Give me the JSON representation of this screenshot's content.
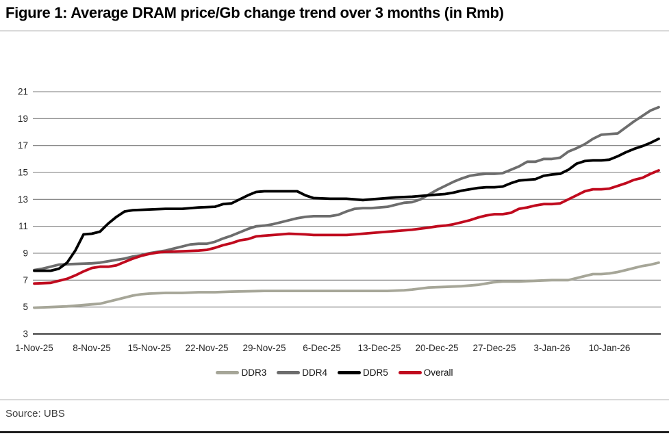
{
  "figure": {
    "title": "Figure 1: Average DRAM price/Gb change trend over 3 months (in Rmb)",
    "source_label": "Source: UBS"
  },
  "chart_data": {
    "type": "line",
    "title": "Figure 1: Average DRAM price/Gb change trend over 3 months (in Rmb)",
    "x_unit": "days since 1-Nov-25",
    "x_tick_labels": [
      "1-Nov-25",
      "8-Nov-25",
      "15-Nov-25",
      "22-Nov-25",
      "29-Nov-25",
      "6-Dec-25",
      "13-Dec-25",
      "20-Dec-25",
      "27-Dec-25",
      "3-Jan-26",
      "10-Jan-26"
    ],
    "x_tick_days": [
      0,
      7,
      14,
      21,
      28,
      35,
      42,
      49,
      56,
      63,
      70
    ],
    "x_range_days": [
      0,
      76
    ],
    "ylim": [
      3,
      21
    ],
    "y_ticks": [
      3,
      5,
      7,
      9,
      11,
      13,
      15,
      17,
      19,
      21
    ],
    "grid": "horizontal",
    "legend_position": "bottom",
    "grid_color": "#7a7a7a",
    "baseline_color": "#000000",
    "tick_label_color": "#262626",
    "series": [
      {
        "name": "DDR3",
        "color": "#a6a698",
        "points": [
          [
            0,
            4.95
          ],
          [
            2,
            5.0
          ],
          [
            4,
            5.05
          ],
          [
            6,
            5.15
          ],
          [
            7,
            5.2
          ],
          [
            8,
            5.25
          ],
          [
            9,
            5.4
          ],
          [
            10,
            5.55
          ],
          [
            11,
            5.7
          ],
          [
            12,
            5.85
          ],
          [
            13,
            5.95
          ],
          [
            14,
            6.0
          ],
          [
            16,
            6.05
          ],
          [
            18,
            6.05
          ],
          [
            20,
            6.1
          ],
          [
            22,
            6.1
          ],
          [
            24,
            6.15
          ],
          [
            28,
            6.2
          ],
          [
            32,
            6.2
          ],
          [
            36,
            6.2
          ],
          [
            40,
            6.2
          ],
          [
            43,
            6.2
          ],
          [
            45,
            6.25
          ],
          [
            46,
            6.3
          ],
          [
            48,
            6.45
          ],
          [
            50,
            6.5
          ],
          [
            52,
            6.55
          ],
          [
            54,
            6.65
          ],
          [
            55,
            6.75
          ],
          [
            56,
            6.85
          ],
          [
            57,
            6.9
          ],
          [
            59,
            6.9
          ],
          [
            61,
            6.95
          ],
          [
            63,
            7.0
          ],
          [
            65,
            7.0
          ],
          [
            66,
            7.15
          ],
          [
            67,
            7.3
          ],
          [
            68,
            7.45
          ],
          [
            69,
            7.45
          ],
          [
            70,
            7.5
          ],
          [
            71,
            7.6
          ],
          [
            72,
            7.75
          ],
          [
            73,
            7.9
          ],
          [
            74,
            8.05
          ],
          [
            75,
            8.15
          ],
          [
            76,
            8.3
          ]
        ]
      },
      {
        "name": "DDR4",
        "color": "#6d6d6d",
        "points": [
          [
            0,
            7.75
          ],
          [
            1,
            7.85
          ],
          [
            2,
            8.0
          ],
          [
            3,
            8.15
          ],
          [
            5,
            8.2
          ],
          [
            7,
            8.25
          ],
          [
            8,
            8.3
          ],
          [
            9,
            8.4
          ],
          [
            10,
            8.5
          ],
          [
            11,
            8.6
          ],
          [
            12,
            8.75
          ],
          [
            13,
            8.85
          ],
          [
            14,
            9.0
          ],
          [
            15,
            9.1
          ],
          [
            16,
            9.2
          ],
          [
            17,
            9.35
          ],
          [
            18,
            9.5
          ],
          [
            19,
            9.65
          ],
          [
            20,
            9.7
          ],
          [
            21,
            9.7
          ],
          [
            22,
            9.85
          ],
          [
            23,
            10.1
          ],
          [
            24,
            10.3
          ],
          [
            25,
            10.55
          ],
          [
            26,
            10.8
          ],
          [
            27,
            11.0
          ],
          [
            28,
            11.05
          ],
          [
            29,
            11.15
          ],
          [
            30,
            11.3
          ],
          [
            31,
            11.45
          ],
          [
            32,
            11.6
          ],
          [
            33,
            11.7
          ],
          [
            34,
            11.75
          ],
          [
            36,
            11.75
          ],
          [
            37,
            11.85
          ],
          [
            38,
            12.1
          ],
          [
            39,
            12.3
          ],
          [
            40,
            12.35
          ],
          [
            41,
            12.35
          ],
          [
            42,
            12.4
          ],
          [
            43,
            12.45
          ],
          [
            44,
            12.6
          ],
          [
            45,
            12.75
          ],
          [
            46,
            12.8
          ],
          [
            47,
            13.0
          ],
          [
            48,
            13.35
          ],
          [
            49,
            13.7
          ],
          [
            50,
            14.0
          ],
          [
            51,
            14.3
          ],
          [
            52,
            14.55
          ],
          [
            53,
            14.75
          ],
          [
            54,
            14.85
          ],
          [
            55,
            14.9
          ],
          [
            56,
            14.9
          ],
          [
            57,
            14.95
          ],
          [
            58,
            15.2
          ],
          [
            59,
            15.45
          ],
          [
            60,
            15.8
          ],
          [
            61,
            15.8
          ],
          [
            62,
            16.0
          ],
          [
            63,
            16.0
          ],
          [
            64,
            16.1
          ],
          [
            65,
            16.55
          ],
          [
            66,
            16.8
          ],
          [
            67,
            17.1
          ],
          [
            68,
            17.5
          ],
          [
            69,
            17.8
          ],
          [
            70,
            17.85
          ],
          [
            71,
            17.9
          ],
          [
            72,
            18.35
          ],
          [
            73,
            18.8
          ],
          [
            74,
            19.2
          ],
          [
            75,
            19.6
          ],
          [
            76,
            19.85
          ]
        ]
      },
      {
        "name": "DDR5",
        "color": "#000000",
        "points": [
          [
            0,
            7.7
          ],
          [
            2,
            7.7
          ],
          [
            3,
            7.85
          ],
          [
            4,
            8.3
          ],
          [
            5,
            9.2
          ],
          [
            6,
            10.4
          ],
          [
            7,
            10.45
          ],
          [
            8,
            10.6
          ],
          [
            9,
            11.2
          ],
          [
            10,
            11.7
          ],
          [
            11,
            12.1
          ],
          [
            12,
            12.2
          ],
          [
            14,
            12.25
          ],
          [
            16,
            12.3
          ],
          [
            18,
            12.3
          ],
          [
            20,
            12.4
          ],
          [
            22,
            12.45
          ],
          [
            23,
            12.65
          ],
          [
            24,
            12.7
          ],
          [
            25,
            13.0
          ],
          [
            26,
            13.3
          ],
          [
            27,
            13.55
          ],
          [
            28,
            13.6
          ],
          [
            30,
            13.6
          ],
          [
            32,
            13.6
          ],
          [
            33,
            13.3
          ],
          [
            34,
            13.1
          ],
          [
            36,
            13.05
          ],
          [
            38,
            13.05
          ],
          [
            39,
            13.0
          ],
          [
            40,
            12.95
          ],
          [
            41,
            13.0
          ],
          [
            42,
            13.05
          ],
          [
            44,
            13.15
          ],
          [
            46,
            13.2
          ],
          [
            48,
            13.3
          ],
          [
            49,
            13.35
          ],
          [
            50,
            13.4
          ],
          [
            51,
            13.5
          ],
          [
            52,
            13.65
          ],
          [
            53,
            13.75
          ],
          [
            54,
            13.85
          ],
          [
            55,
            13.9
          ],
          [
            56,
            13.9
          ],
          [
            57,
            13.95
          ],
          [
            58,
            14.2
          ],
          [
            59,
            14.4
          ],
          [
            60,
            14.45
          ],
          [
            61,
            14.5
          ],
          [
            62,
            14.75
          ],
          [
            63,
            14.85
          ],
          [
            64,
            14.9
          ],
          [
            65,
            15.2
          ],
          [
            66,
            15.65
          ],
          [
            67,
            15.85
          ],
          [
            68,
            15.9
          ],
          [
            69,
            15.9
          ],
          [
            70,
            15.95
          ],
          [
            71,
            16.2
          ],
          [
            72,
            16.5
          ],
          [
            73,
            16.75
          ],
          [
            74,
            16.95
          ],
          [
            75,
            17.2
          ],
          [
            76,
            17.5
          ]
        ]
      },
      {
        "name": "Overall",
        "color": "#c00a1e",
        "points": [
          [
            0,
            6.75
          ],
          [
            2,
            6.8
          ],
          [
            3,
            6.95
          ],
          [
            4,
            7.1
          ],
          [
            5,
            7.35
          ],
          [
            6,
            7.65
          ],
          [
            7,
            7.9
          ],
          [
            8,
            8.0
          ],
          [
            9,
            8.0
          ],
          [
            10,
            8.1
          ],
          [
            11,
            8.35
          ],
          [
            12,
            8.6
          ],
          [
            13,
            8.8
          ],
          [
            14,
            8.95
          ],
          [
            15,
            9.05
          ],
          [
            16,
            9.1
          ],
          [
            18,
            9.15
          ],
          [
            20,
            9.2
          ],
          [
            21,
            9.25
          ],
          [
            22,
            9.4
          ],
          [
            23,
            9.6
          ],
          [
            24,
            9.75
          ],
          [
            25,
            9.95
          ],
          [
            26,
            10.05
          ],
          [
            27,
            10.25
          ],
          [
            28,
            10.3
          ],
          [
            30,
            10.4
          ],
          [
            31,
            10.45
          ],
          [
            33,
            10.4
          ],
          [
            34,
            10.35
          ],
          [
            36,
            10.35
          ],
          [
            38,
            10.35
          ],
          [
            40,
            10.45
          ],
          [
            42,
            10.55
          ],
          [
            44,
            10.65
          ],
          [
            46,
            10.75
          ],
          [
            48,
            10.9
          ],
          [
            49,
            11.0
          ],
          [
            50,
            11.05
          ],
          [
            51,
            11.15
          ],
          [
            52,
            11.3
          ],
          [
            53,
            11.45
          ],
          [
            54,
            11.65
          ],
          [
            55,
            11.8
          ],
          [
            56,
            11.9
          ],
          [
            57,
            11.9
          ],
          [
            58,
            12.0
          ],
          [
            59,
            12.3
          ],
          [
            60,
            12.4
          ],
          [
            61,
            12.55
          ],
          [
            62,
            12.65
          ],
          [
            63,
            12.65
          ],
          [
            64,
            12.7
          ],
          [
            65,
            13.0
          ],
          [
            66,
            13.3
          ],
          [
            67,
            13.6
          ],
          [
            68,
            13.75
          ],
          [
            69,
            13.75
          ],
          [
            70,
            13.8
          ],
          [
            71,
            14.0
          ],
          [
            72,
            14.2
          ],
          [
            73,
            14.45
          ],
          [
            74,
            14.6
          ],
          [
            75,
            14.9
          ],
          [
            76,
            15.15
          ]
        ]
      }
    ]
  }
}
